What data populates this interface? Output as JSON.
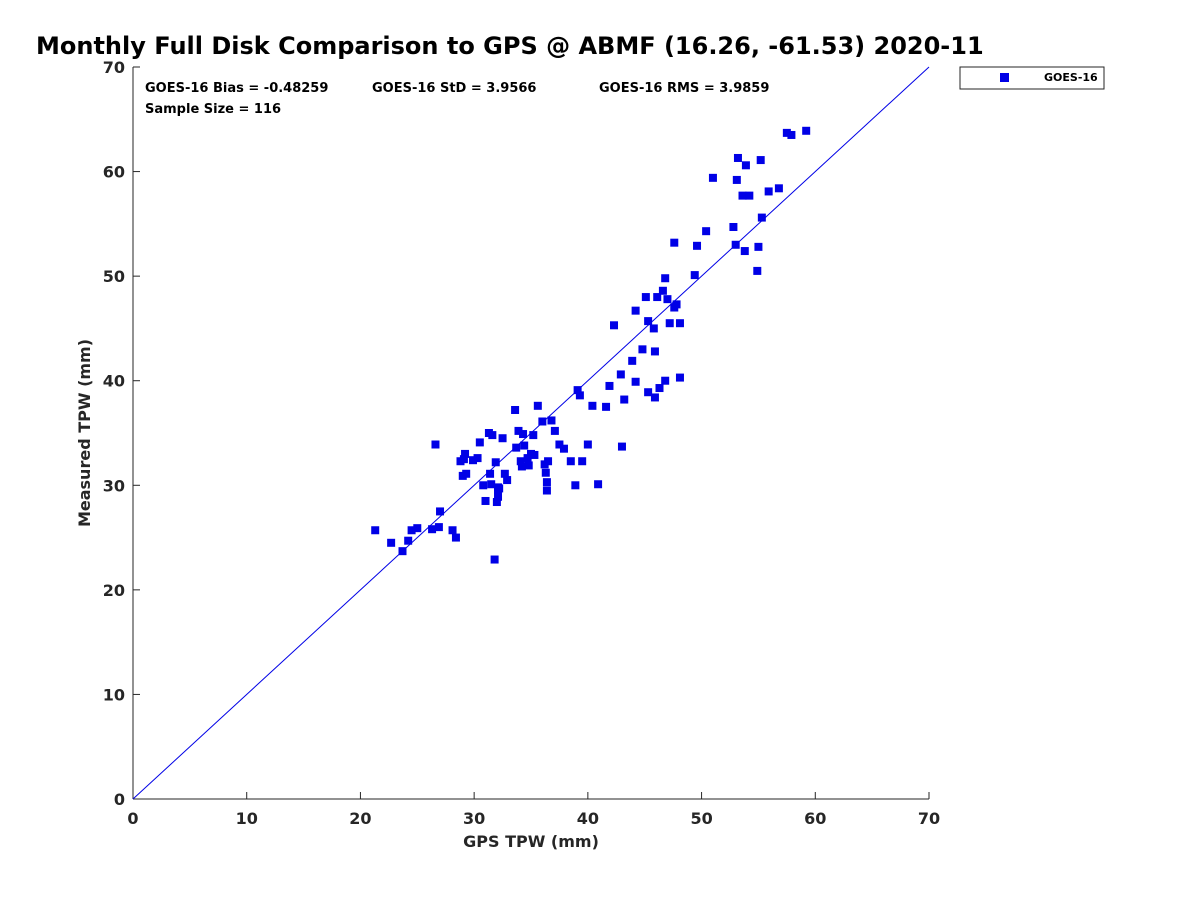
{
  "chart_data": {
    "type": "scatter",
    "title": "Monthly Full Disk Comparison to GPS @ ABMF (16.26, -61.53) 2020-11",
    "xlabel": "GPS TPW (mm)",
    "ylabel": "Measured TPW (mm)",
    "xlim": [
      0,
      70
    ],
    "ylim": [
      0,
      70
    ],
    "xticks": [
      "0",
      "10",
      "20",
      "30",
      "40",
      "50",
      "60",
      "70"
    ],
    "yticks": [
      "0",
      "10",
      "20",
      "30",
      "40",
      "50",
      "60",
      "70"
    ],
    "grid": false,
    "legend_position": "outside-top-right",
    "reference_line": {
      "name": "1:1 line",
      "x": [
        0,
        70
      ],
      "y": [
        0,
        70
      ],
      "color": "#0000e6"
    },
    "stats": {
      "bias": "GOES-16 Bias = -0.48259",
      "std": "GOES-16 StD = 3.9566",
      "rms": "GOES-16 RMS = 3.9859",
      "sample": "Sample Size = 116"
    },
    "series": [
      {
        "name": "GOES-16",
        "color": "#0000e6",
        "marker": "square",
        "x": [
          21.3,
          22.7,
          23.7,
          24.2,
          24.5,
          25.0,
          26.3,
          26.6,
          26.9,
          27.0,
          28.1,
          28.4,
          28.8,
          29.0,
          29.1,
          29.2,
          29.3,
          29.9,
          30.3,
          30.5,
          30.8,
          31.0,
          31.3,
          31.4,
          31.5,
          31.6,
          31.8,
          32.0,
          32.1,
          32.1,
          32.2,
          32.5,
          32.7,
          32.9,
          33.6,
          33.7,
          33.9,
          34.1,
          34.2,
          34.3,
          34.4,
          34.7,
          35.0,
          35.2,
          35.6,
          36.2,
          36.3,
          36.4,
          36.4,
          36.5,
          36.8,
          37.1,
          37.5,
          37.9,
          38.5,
          38.9,
          39.1,
          39.3,
          39.5,
          40.0,
          40.4,
          40.9,
          41.6,
          41.9,
          42.3,
          42.9,
          43.0,
          43.2,
          43.9,
          44.2,
          44.2,
          44.8,
          45.1,
          45.3,
          45.3,
          45.8,
          45.9,
          45.9,
          46.1,
          46.3,
          46.6,
          46.8,
          46.8,
          47.0,
          47.2,
          47.6,
          47.6,
          47.8,
          48.1,
          48.1,
          49.4,
          49.6,
          50.4,
          51.0,
          52.8,
          53.0,
          53.1,
          53.2,
          53.6,
          53.8,
          53.9,
          54.2,
          54.9,
          55.0,
          55.2,
          55.3,
          55.9,
          56.8,
          57.5,
          57.9,
          59.2,
          32.1,
          31.9,
          35.3,
          36.0,
          34.8
        ],
        "y": [
          25.7,
          24.5,
          23.7,
          24.7,
          25.7,
          25.9,
          25.8,
          33.9,
          26.0,
          27.5,
          25.7,
          25.0,
          32.3,
          30.9,
          32.5,
          33.0,
          31.1,
          32.4,
          32.6,
          34.1,
          30.0,
          28.5,
          35.0,
          31.1,
          30.1,
          34.8,
          22.9,
          28.4,
          28.9,
          29.8,
          29.7,
          34.5,
          31.1,
          30.5,
          37.2,
          33.6,
          35.2,
          32.3,
          31.8,
          34.9,
          33.8,
          32.6,
          33.0,
          34.8,
          37.6,
          32.0,
          31.2,
          30.3,
          29.5,
          32.3,
          36.2,
          35.2,
          33.9,
          33.5,
          32.3,
          30.0,
          39.1,
          38.6,
          32.3,
          33.9,
          37.6,
          30.1,
          37.5,
          39.5,
          45.3,
          40.6,
          33.7,
          38.2,
          41.9,
          46.7,
          39.9,
          43.0,
          48.0,
          45.7,
          38.9,
          45.0,
          42.8,
          38.4,
          48.0,
          39.3,
          48.6,
          49.8,
          40.0,
          47.8,
          45.5,
          47.0,
          53.2,
          47.3,
          45.5,
          40.3,
          50.1,
          52.9,
          54.3,
          59.4,
          54.7,
          53.0,
          59.2,
          61.3,
          57.7,
          52.4,
          60.6,
          57.7,
          50.5,
          52.8,
          61.1,
          55.6,
          58.1,
          58.4,
          63.7,
          63.5,
          63.9,
          29.6,
          32.2,
          32.9,
          36.1,
          31.9
        ]
      }
    ]
  }
}
